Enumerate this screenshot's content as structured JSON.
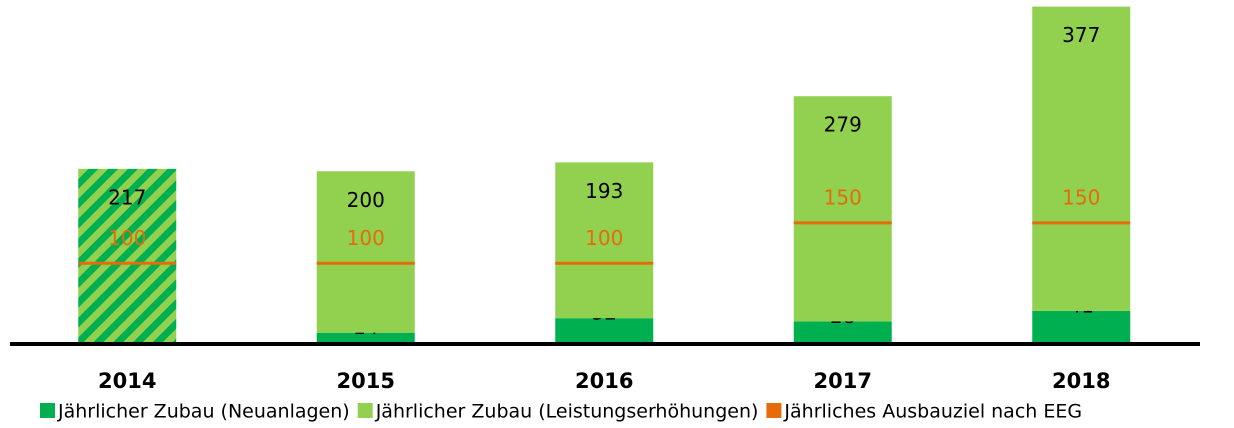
{
  "chart_data": {
    "type": "stacked_bar",
    "categories": [
      "2014",
      "2015",
      "2016",
      "2017",
      "2018"
    ],
    "series": [
      {
        "name": "Jährlicher Zubau (Neuanlagen)",
        "color": "#00b050",
        "values": [
          null,
          14,
          32,
          28,
          41
        ]
      },
      {
        "name": "Jährlicher Zubau (Leistungserhöhungen)",
        "color": "#92d050",
        "values": [
          217,
          200,
          193,
          279,
          377
        ]
      },
      {
        "name": "Jährliches Ausbauziel nach EEG",
        "color": "#e46c0a",
        "type": "target",
        "values": [
          100,
          100,
          100,
          150,
          150
        ]
      }
    ],
    "hatched": [
      true,
      false,
      false,
      false,
      false
    ],
    "ylim": [
      0,
      420
    ]
  }
}
